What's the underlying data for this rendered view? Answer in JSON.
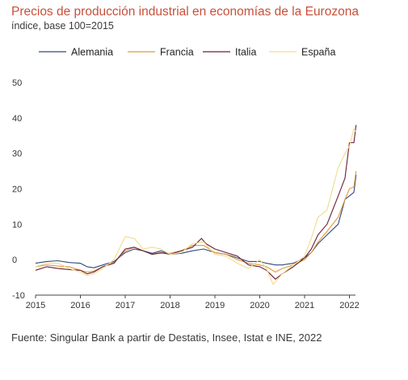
{
  "title": "Precios de producción industrial en economías de la Eurozona",
  "subtitle": "índice, base 100=2015",
  "source": "Fuente: Singular Bank a partir de Destatis, Insee, Istat e INE, 2022",
  "chart_data": {
    "type": "line",
    "title": "Precios de producción industrial en economías de la Eurozona",
    "subtitle": "índice, base 100=2015",
    "xlabel": "",
    "ylabel": "",
    "ylim": [
      -10,
      50
    ],
    "yticks": [
      -10,
      0,
      10,
      20,
      30,
      40,
      50
    ],
    "ytick_labels": [
      "-10",
      "0",
      "10",
      "20",
      "30",
      "40",
      "50"
    ],
    "xlim": [
      2015,
      2022.2
    ],
    "xticks": [
      2015,
      2016,
      2017,
      2018,
      2019,
      2020,
      2021,
      2022
    ],
    "xtick_labels": [
      "2015",
      "2016",
      "2017",
      "2018",
      "2019",
      "2020",
      "2021",
      "2022"
    ],
    "grid": false,
    "legend_position": "top",
    "series": [
      {
        "name": "Alemania",
        "color": "#2e4a7d",
        "points": [
          [
            2015,
            -1
          ],
          [
            2015.25,
            -0.5
          ],
          [
            2015.5,
            -0.3
          ],
          [
            2015.75,
            -0.8
          ],
          [
            2016,
            -1
          ],
          [
            2016.15,
            -2
          ],
          [
            2016.3,
            -2.3
          ],
          [
            2016.5,
            -1.5
          ],
          [
            2016.75,
            -0.5
          ],
          [
            2017,
            2
          ],
          [
            2017.2,
            3
          ],
          [
            2017.4,
            2.5
          ],
          [
            2017.6,
            1.8
          ],
          [
            2017.8,
            2.5
          ],
          [
            2018,
            1.5
          ],
          [
            2018.25,
            1.8
          ],
          [
            2018.5,
            2.5
          ],
          [
            2018.75,
            3
          ],
          [
            2019,
            2
          ],
          [
            2019.25,
            1.5
          ],
          [
            2019.5,
            0.5
          ],
          [
            2019.75,
            -0.5
          ],
          [
            2020,
            -0.5
          ],
          [
            2020.15,
            -1
          ],
          [
            2020.35,
            -1.5
          ],
          [
            2020.5,
            -1.5
          ],
          [
            2020.75,
            -1
          ],
          [
            2021,
            0.5
          ],
          [
            2021.15,
            2
          ],
          [
            2021.3,
            4.5
          ],
          [
            2021.5,
            7
          ],
          [
            2021.75,
            10
          ],
          [
            2021.9,
            17
          ],
          [
            2022,
            18
          ],
          [
            2022.1,
            19
          ],
          [
            2022.15,
            24
          ]
        ]
      },
      {
        "name": "Francia",
        "color": "#e09a3e",
        "points": [
          [
            2015,
            -2
          ],
          [
            2015.25,
            -1.5
          ],
          [
            2015.5,
            -1.8
          ],
          [
            2015.75,
            -2
          ],
          [
            2016,
            -3
          ],
          [
            2016.15,
            -3.5
          ],
          [
            2016.3,
            -3.2
          ],
          [
            2016.5,
            -2
          ],
          [
            2016.75,
            -0.8
          ],
          [
            2017,
            2.5
          ],
          [
            2017.2,
            3.5
          ],
          [
            2017.4,
            2.5
          ],
          [
            2017.6,
            1.5
          ],
          [
            2017.8,
            1.8
          ],
          [
            2018,
            1.8
          ],
          [
            2018.25,
            2.5
          ],
          [
            2018.5,
            4
          ],
          [
            2018.75,
            4
          ],
          [
            2019,
            2
          ],
          [
            2019.25,
            1.5
          ],
          [
            2019.5,
            0
          ],
          [
            2019.75,
            -1
          ],
          [
            2020,
            -1.5
          ],
          [
            2020.15,
            -2
          ],
          [
            2020.35,
            -3.5
          ],
          [
            2020.5,
            -2.5
          ],
          [
            2020.75,
            -1.5
          ],
          [
            2021,
            0
          ],
          [
            2021.15,
            2
          ],
          [
            2021.3,
            5
          ],
          [
            2021.5,
            8
          ],
          [
            2021.75,
            12
          ],
          [
            2021.9,
            17
          ],
          [
            2022,
            20
          ],
          [
            2022.1,
            20.5
          ],
          [
            2022.15,
            25
          ]
        ]
      },
      {
        "name": "Italia",
        "color": "#6b1f3a",
        "points": [
          [
            2015,
            -3
          ],
          [
            2015.25,
            -2
          ],
          [
            2015.5,
            -2.5
          ],
          [
            2015.75,
            -2.8
          ],
          [
            2016,
            -3
          ],
          [
            2016.15,
            -4
          ],
          [
            2016.3,
            -3.5
          ],
          [
            2016.5,
            -2
          ],
          [
            2016.75,
            -1
          ],
          [
            2017,
            3
          ],
          [
            2017.2,
            3.5
          ],
          [
            2017.4,
            2.5
          ],
          [
            2017.6,
            1.5
          ],
          [
            2017.8,
            2
          ],
          [
            2018,
            1.5
          ],
          [
            2018.25,
            2.5
          ],
          [
            2018.5,
            3.5
          ],
          [
            2018.7,
            6
          ],
          [
            2018.8,
            4.5
          ],
          [
            2019,
            3
          ],
          [
            2019.25,
            2
          ],
          [
            2019.5,
            1
          ],
          [
            2019.75,
            -1.5
          ],
          [
            2020,
            -2
          ],
          [
            2020.15,
            -3
          ],
          [
            2020.35,
            -5.5
          ],
          [
            2020.5,
            -4
          ],
          [
            2020.75,
            -2
          ],
          [
            2021,
            0.5
          ],
          [
            2021.15,
            3
          ],
          [
            2021.3,
            7
          ],
          [
            2021.5,
            10
          ],
          [
            2021.75,
            18
          ],
          [
            2021.9,
            23
          ],
          [
            2022,
            33
          ],
          [
            2022.1,
            33
          ],
          [
            2022.15,
            38
          ]
        ]
      },
      {
        "name": "España",
        "color": "#f0dd8a",
        "points": [
          [
            2015,
            -2
          ],
          [
            2015.25,
            -1
          ],
          [
            2015.5,
            -1
          ],
          [
            2015.75,
            -2.5
          ],
          [
            2016,
            -3.5
          ],
          [
            2016.15,
            -4.5
          ],
          [
            2016.3,
            -4
          ],
          [
            2016.5,
            -2.5
          ],
          [
            2016.75,
            0
          ],
          [
            2017,
            6.5
          ],
          [
            2017.2,
            6
          ],
          [
            2017.4,
            3
          ],
          [
            2017.6,
            3.5
          ],
          [
            2017.8,
            3
          ],
          [
            2018,
            1.5
          ],
          [
            2018.25,
            2
          ],
          [
            2018.5,
            4.5
          ],
          [
            2018.75,
            5
          ],
          [
            2019,
            1.5
          ],
          [
            2019.25,
            1
          ],
          [
            2019.5,
            -1
          ],
          [
            2019.75,
            -2.5
          ],
          [
            2020,
            0
          ],
          [
            2020.15,
            -2.5
          ],
          [
            2020.3,
            -7
          ],
          [
            2020.5,
            -4
          ],
          [
            2020.75,
            -1.5
          ],
          [
            2021,
            1
          ],
          [
            2021.15,
            6
          ],
          [
            2021.3,
            12
          ],
          [
            2021.5,
            14
          ],
          [
            2021.75,
            26
          ],
          [
            2021.9,
            30
          ],
          [
            2022,
            32
          ],
          [
            2022.1,
            37
          ],
          [
            2022.15,
            36
          ]
        ]
      }
    ]
  }
}
